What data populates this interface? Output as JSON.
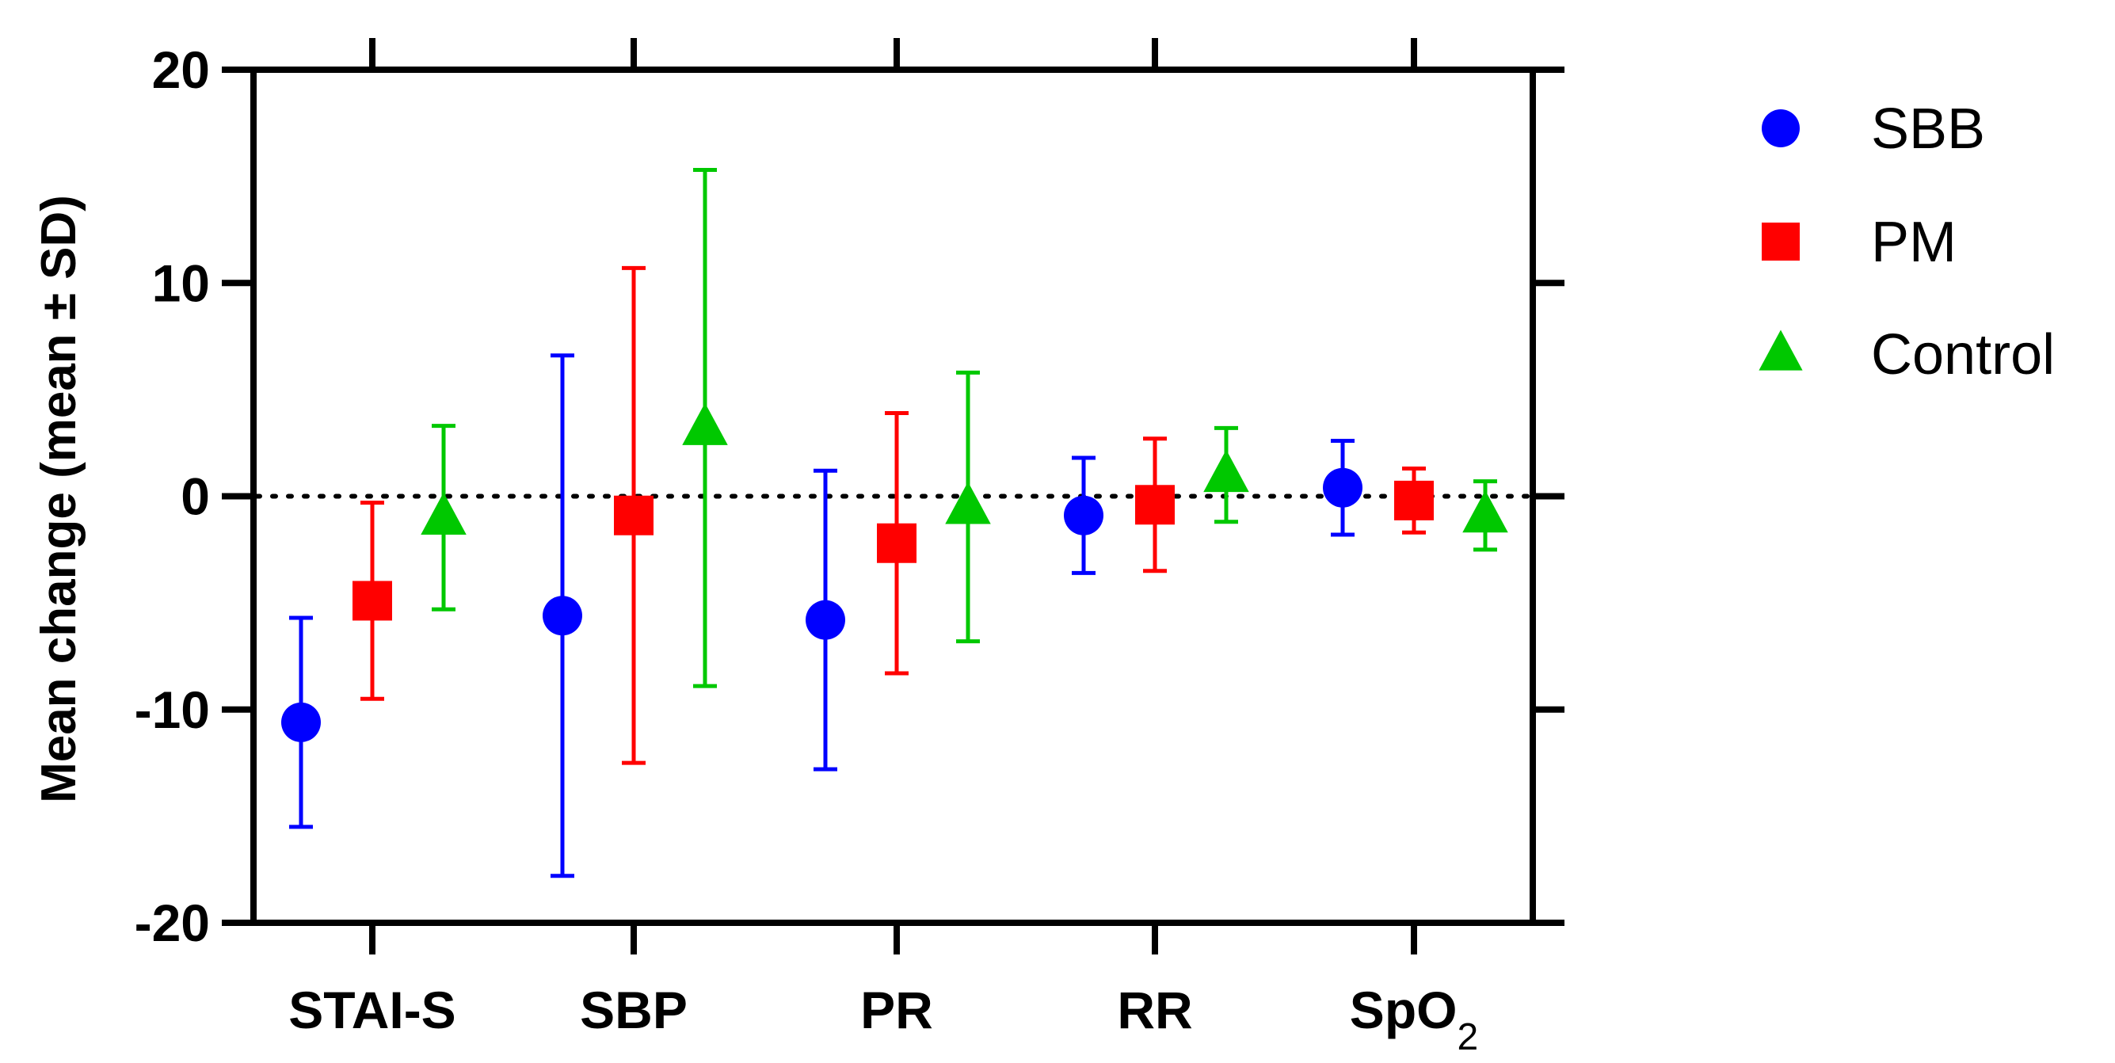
{
  "chart_data": {
    "type": "scatter",
    "title": "",
    "xlabel": "",
    "ylabel": "Mean change (mean ± SD)",
    "ylim": [
      -20,
      20
    ],
    "yticks": [
      "-20",
      "-10",
      "0",
      "10",
      "20"
    ],
    "ytick_values": [
      -20,
      -10,
      0,
      10,
      20
    ],
    "reference_line": {
      "y": 0,
      "style": "dotted"
    },
    "categories": [
      {
        "label": "STAI-S",
        "base": "STAI-S",
        "sub": ""
      },
      {
        "label": "SBP",
        "base": "SBP",
        "sub": ""
      },
      {
        "label": "PR",
        "base": "PR",
        "sub": ""
      },
      {
        "label": "RR",
        "base": "RR",
        "sub": ""
      },
      {
        "label": "SpO2",
        "base": "SpO",
        "sub": "2"
      }
    ],
    "legend_position": "top-right",
    "series": [
      {
        "name": "SBB",
        "color": "#0000ff",
        "marker": "circle",
        "mean": [
          -10.6,
          -5.6,
          -5.8,
          -0.9,
          0.4
        ],
        "sd": [
          4.9,
          12.2,
          7.0,
          2.7,
          2.2
        ]
      },
      {
        "name": "PM",
        "color": "#ff0000",
        "marker": "square",
        "mean": [
          -4.9,
          -0.9,
          -2.2,
          -0.4,
          -0.2
        ],
        "sd": [
          4.6,
          11.6,
          6.1,
          3.1,
          1.5
        ]
      },
      {
        "name": "Control",
        "color": "#00c800",
        "marker": "triangle",
        "mean": [
          -1.0,
          3.2,
          -0.5,
          1.0,
          -0.9
        ],
        "sd": [
          4.3,
          12.1,
          6.3,
          2.2,
          1.6
        ]
      }
    ]
  }
}
